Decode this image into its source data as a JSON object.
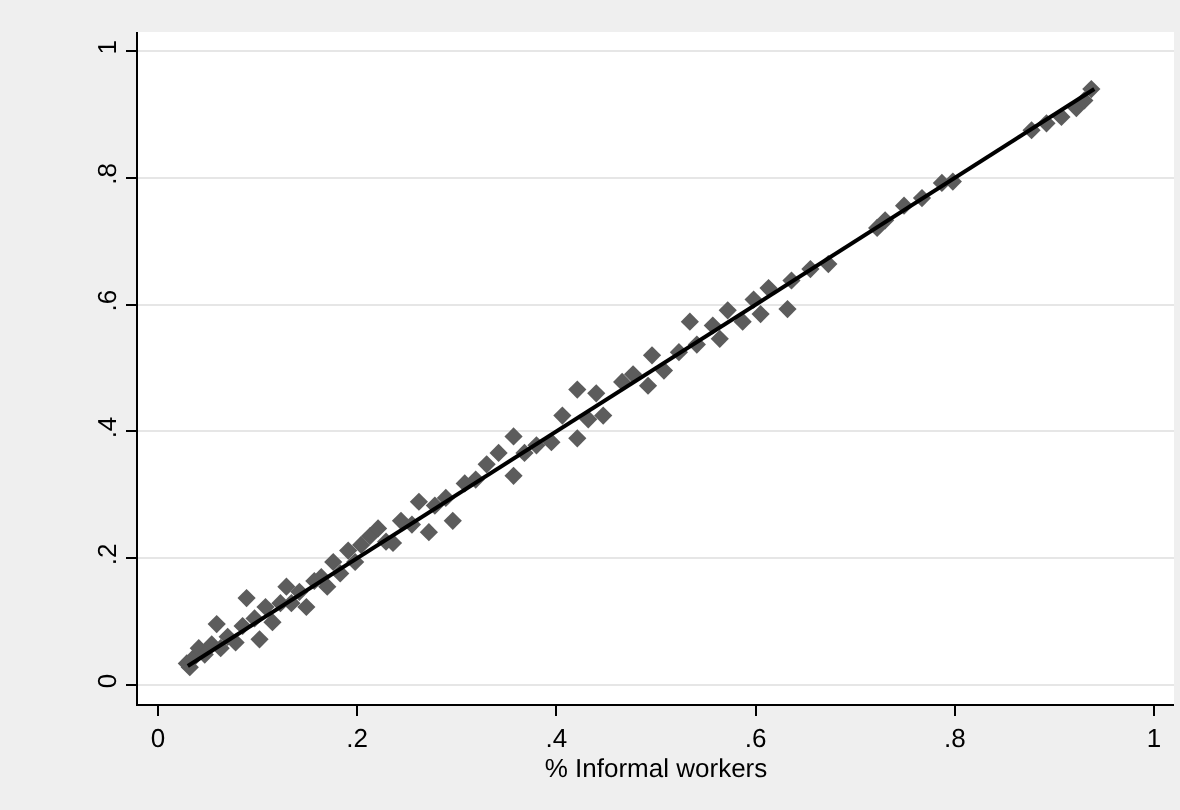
{
  "chart_data": {
    "type": "scatter",
    "xlabel": "% Informal workers",
    "xlim": [
      -0.02,
      1.02
    ],
    "ylim": [
      -0.03,
      1.03
    ],
    "xticks": [
      {
        "value": 0,
        "label": "0"
      },
      {
        "value": 0.2,
        "label": ".2"
      },
      {
        "value": 0.4,
        "label": ".4"
      },
      {
        "value": 0.6,
        "label": ".6"
      },
      {
        "value": 0.8,
        "label": ".8"
      },
      {
        "value": 1,
        "label": "1"
      }
    ],
    "yticks": [
      {
        "value": 0,
        "label": "0"
      },
      {
        "value": 0.2,
        "label": ".2"
      },
      {
        "value": 0.4,
        "label": ".4"
      },
      {
        "value": 0.6,
        "label": ".6"
      },
      {
        "value": 0.8,
        "label": ".8"
      },
      {
        "value": 1,
        "label": "1"
      }
    ],
    "grid": "y",
    "marker": "diamond",
    "series": [
      {
        "color": "#5c5c5c",
        "x": [
          0.029,
          0.032,
          0.036,
          0.041,
          0.047,
          0.054,
          0.059,
          0.063,
          0.07,
          0.078,
          0.089,
          0.085,
          0.097,
          0.102,
          0.108,
          0.115,
          0.123,
          0.129,
          0.134,
          0.142,
          0.149,
          0.157,
          0.164,
          0.17,
          0.176,
          0.183,
          0.191,
          0.198,
          0.204,
          0.213,
          0.221,
          0.229,
          0.236,
          0.244,
          0.255,
          0.262,
          0.272,
          0.278,
          0.289,
          0.296,
          0.308,
          0.319,
          0.33,
          0.342,
          0.357,
          0.357,
          0.368,
          0.38,
          0.395,
          0.406,
          0.421,
          0.421,
          0.432,
          0.44,
          0.447,
          0.466,
          0.477,
          0.492,
          0.496,
          0.508,
          0.523,
          0.534,
          0.541,
          0.557,
          0.564,
          0.572,
          0.587,
          0.598,
          0.605,
          0.613,
          0.632,
          0.636,
          0.655,
          0.673,
          0.722,
          0.73,
          0.749,
          0.767,
          0.787,
          0.798,
          0.877,
          0.892,
          0.907,
          0.922,
          0.93,
          0.937
        ],
        "values": [
          0.034,
          0.028,
          0.043,
          0.058,
          0.048,
          0.064,
          0.096,
          0.058,
          0.076,
          0.067,
          0.137,
          0.093,
          0.105,
          0.072,
          0.123,
          0.099,
          0.129,
          0.155,
          0.129,
          0.147,
          0.123,
          0.164,
          0.17,
          0.155,
          0.194,
          0.176,
          0.212,
          0.194,
          0.221,
          0.235,
          0.247,
          0.226,
          0.224,
          0.259,
          0.253,
          0.289,
          0.241,
          0.283,
          0.295,
          0.259,
          0.318,
          0.324,
          0.348,
          0.366,
          0.392,
          0.33,
          0.366,
          0.378,
          0.383,
          0.425,
          0.466,
          0.389,
          0.419,
          0.46,
          0.425,
          0.478,
          0.49,
          0.472,
          0.52,
          0.496,
          0.525,
          0.573,
          0.537,
          0.567,
          0.546,
          0.591,
          0.573,
          0.608,
          0.585,
          0.626,
          0.593,
          0.638,
          0.656,
          0.664,
          0.721,
          0.733,
          0.756,
          0.768,
          0.792,
          0.794,
          0.875,
          0.886,
          0.896,
          0.91,
          0.922,
          0.94
        ]
      },
      {
        "type": "line",
        "color": "#000000",
        "x": [
          0.03,
          0.94
        ],
        "values": [
          0.03,
          0.94
        ],
        "marker": "none",
        "line_style": "solid"
      }
    ]
  }
}
